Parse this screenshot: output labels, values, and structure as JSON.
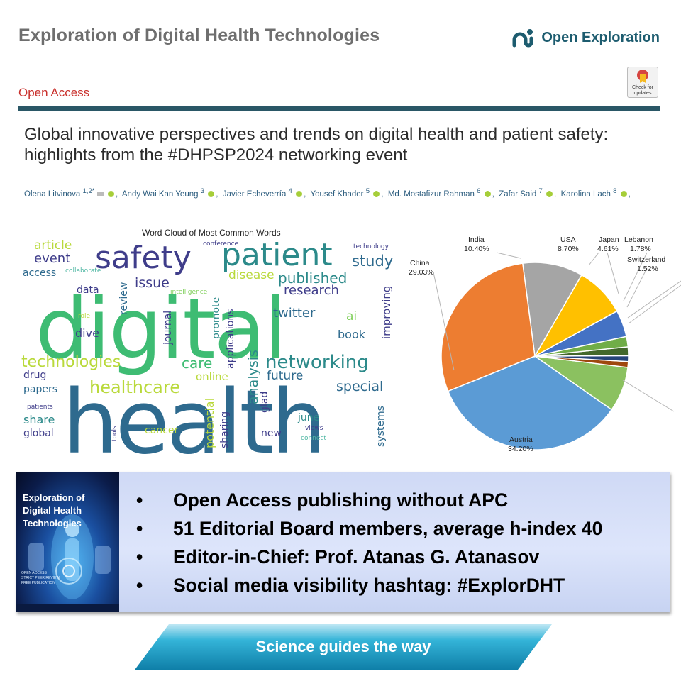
{
  "header": {
    "journal_title": "Exploration of Digital Health Technologies",
    "brand": "Open Exploration",
    "open_access": "Open Access",
    "check_updates": "Check for updates"
  },
  "article": {
    "title_line1": "Global innovative perspectives and trends on digital health and patient safety:",
    "title_line2": "highlights from the #DHPSP2024 networking event",
    "authors": [
      {
        "name": "Olena Litvinova",
        "sup": "1,2*"
      },
      {
        "name": "Andy Wai Kan Yeung",
        "sup": "3"
      },
      {
        "name": "Javier Echeverría",
        "sup": "4"
      },
      {
        "name": "Yousef Khader",
        "sup": "5"
      },
      {
        "name": "Md. Mostafizur Rahman",
        "sup": "6"
      },
      {
        "name": "Zafar Said",
        "sup": "7"
      },
      {
        "name": "Karolina Lach",
        "sup": "8"
      }
    ]
  },
  "word_cloud": {
    "title": "Word Cloud of Most Common Words"
  },
  "chart_data": {
    "type": "pie",
    "title": "",
    "slices": [
      {
        "label": "Austria",
        "value": 34.2,
        "color": "#5b9bd5"
      },
      {
        "label": "",
        "value": 7.76,
        "color": "#8bc160"
      },
      {
        "label": "",
        "value": 1.0,
        "color": "#9e480e"
      },
      {
        "label": "",
        "value": 1.0,
        "color": "#264478"
      },
      {
        "label": "Switzerland",
        "value": 1.52,
        "color": "#43682b"
      },
      {
        "label": "Lebanon",
        "value": 1.78,
        "color": "#70ad47"
      },
      {
        "label": "Japan",
        "value": 4.61,
        "color": "#4472c4"
      },
      {
        "label": "USA",
        "value": 8.7,
        "color": "#ffc000"
      },
      {
        "label": "India",
        "value": 10.4,
        "color": "#a5a5a5"
      },
      {
        "label": "China",
        "value": 29.03,
        "color": "#ed7d31"
      }
    ],
    "labels_text": {
      "china": "China",
      "china_pct": "29.03%",
      "india": "India",
      "india_pct": "10.40%",
      "usa": "USA",
      "usa_pct": "8.70%",
      "japan": "Japan",
      "japan_pct": "4.61%",
      "lebanon": "Lebanon",
      "lebanon_pct": "1.78%",
      "switzerland": "Switzerland",
      "switzerland_pct": "1.52%",
      "austria": "Austria",
      "austria_pct": "34.20%"
    }
  },
  "promo": {
    "cover_title_1": "Exploration of",
    "cover_title_2": "Digital Health",
    "cover_title_3": "Technologies",
    "cover_line_1": "OPEN ACCESS",
    "cover_line_2": "STRICT PEER REVIEW",
    "cover_line_3": "FREE PUBLICATION",
    "bullet_char": "•",
    "bullets": [
      "Open Access publishing without APC",
      "51 Editorial Board members, average h-index 40",
      "Editor-in-Chief: Prof. Atanas G. Atanasov",
      "Social media visibility hashtag: #ExplorDHT"
    ]
  },
  "banner": {
    "text": "Science guides the way",
    "colors": [
      "#0f7fa8",
      "#34b4d8",
      "#bfe7f4"
    ]
  }
}
